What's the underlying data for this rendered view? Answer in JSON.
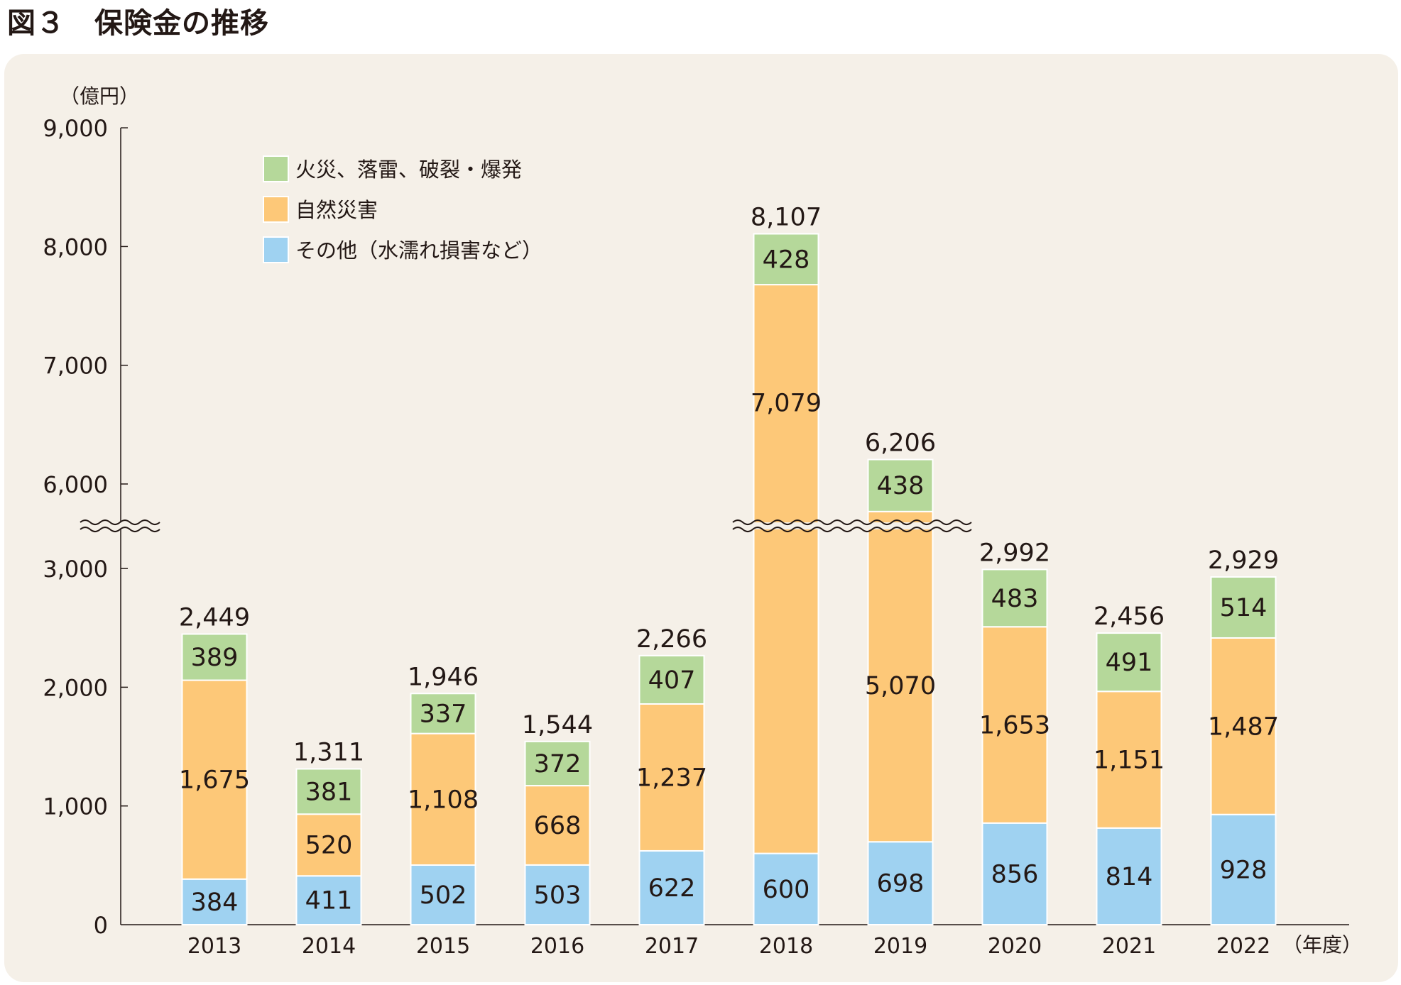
{
  "title": "図３　保険金の推移",
  "chart_data": {
    "type": "stacked-bar",
    "title": "図３　保険金の推移",
    "ylabel": "（億円）",
    "xlabel": "（年度）",
    "categories": [
      "2013",
      "2014",
      "2015",
      "2016",
      "2017",
      "2018",
      "2019",
      "2020",
      "2021",
      "2022"
    ],
    "series": [
      {
        "name": "その他（水濡れ損害など）",
        "color": "#9fd2f1",
        "values": [
          384,
          411,
          502,
          503,
          622,
          600,
          698,
          856,
          814,
          928
        ]
      },
      {
        "name": "自然災害",
        "color": "#fdc878",
        "values": [
          1675,
          520,
          1108,
          668,
          1237,
          7079,
          5070,
          1653,
          1151,
          1487
        ]
      },
      {
        "name": "火災、落雷、破裂・爆発",
        "color": "#b5d89a",
        "values": [
          389,
          381,
          337,
          372,
          407,
          428,
          438,
          483,
          491,
          514
        ]
      }
    ],
    "totals": [
      "2,449",
      "1,311",
      "1,946",
      "1,544",
      "2,266",
      "8,107",
      "6,206",
      "2,992",
      "2,456",
      "2,929"
    ],
    "value_labels": [
      [
        "384",
        "411",
        "502",
        "503",
        "622",
        "600",
        "698",
        "856",
        "814",
        "928"
      ],
      [
        "1,675",
        "520",
        "1,108",
        "668",
        "1,237",
        "7,079",
        "5,070",
        "1,653",
        "1,151",
        "1,487"
      ],
      [
        "389",
        "381",
        "337",
        "372",
        "407",
        "428",
        "438",
        "483",
        "491",
        "514"
      ]
    ],
    "yticks": [
      0,
      1000,
      2000,
      3000,
      6000,
      7000,
      8000,
      9000
    ],
    "ytick_labels": [
      "0",
      "1,000",
      "2,000",
      "3,000",
      "6,000",
      "7,000",
      "8,000",
      "9,000"
    ],
    "ylim": [
      0,
      9000
    ],
    "axis_break": [
      3365,
      5650
    ],
    "legend_position": "top-left",
    "legend_order": [
      2,
      1,
      0
    ],
    "grid": false
  }
}
